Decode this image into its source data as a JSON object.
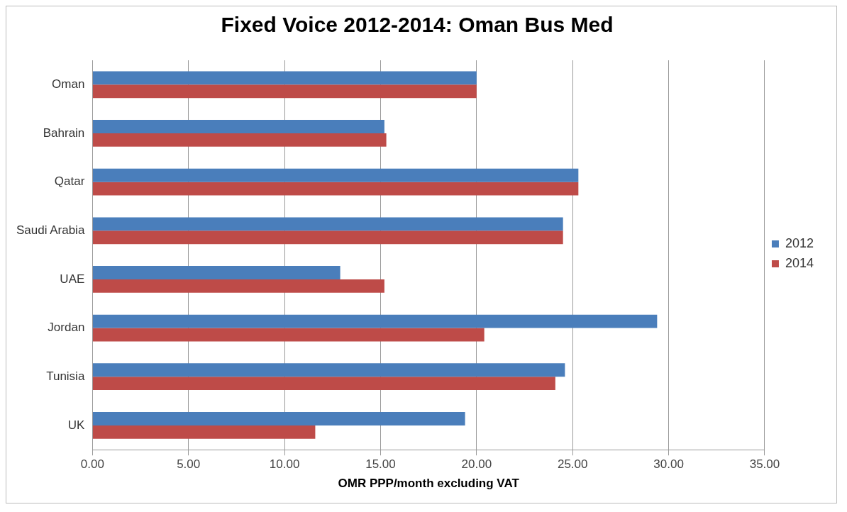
{
  "chart_data": {
    "type": "bar",
    "orientation": "horizontal",
    "title": "Fixed Voice 2012-2014: Oman Bus Med",
    "xlabel": "OMR PPP/month excluding VAT",
    "categories": [
      "Oman",
      "Bahrain",
      "Qatar",
      "Saudi Arabia",
      "UAE",
      "Jordan",
      "Tunisia",
      "UK"
    ],
    "series": [
      {
        "name": "2012",
        "color": "#4a7ebb",
        "values": [
          20.0,
          15.2,
          25.3,
          24.5,
          12.9,
          29.4,
          24.6,
          19.4
        ]
      },
      {
        "name": "2014",
        "color": "#be4b48",
        "values": [
          20.0,
          15.3,
          25.3,
          24.5,
          15.2,
          20.4,
          24.1,
          11.6
        ]
      }
    ],
    "xlim": [
      0,
      35
    ],
    "xticks": [
      {
        "value": 0,
        "label": "0.00"
      },
      {
        "value": 5,
        "label": "5.00"
      },
      {
        "value": 10,
        "label": "10.00"
      },
      {
        "value": 15,
        "label": "15.00"
      },
      {
        "value": 20,
        "label": "20.00"
      },
      {
        "value": 25,
        "label": "25.00"
      },
      {
        "value": 30,
        "label": "30.00"
      },
      {
        "value": 35,
        "label": "35.00"
      }
    ],
    "grid": "x",
    "legend": "right"
  }
}
